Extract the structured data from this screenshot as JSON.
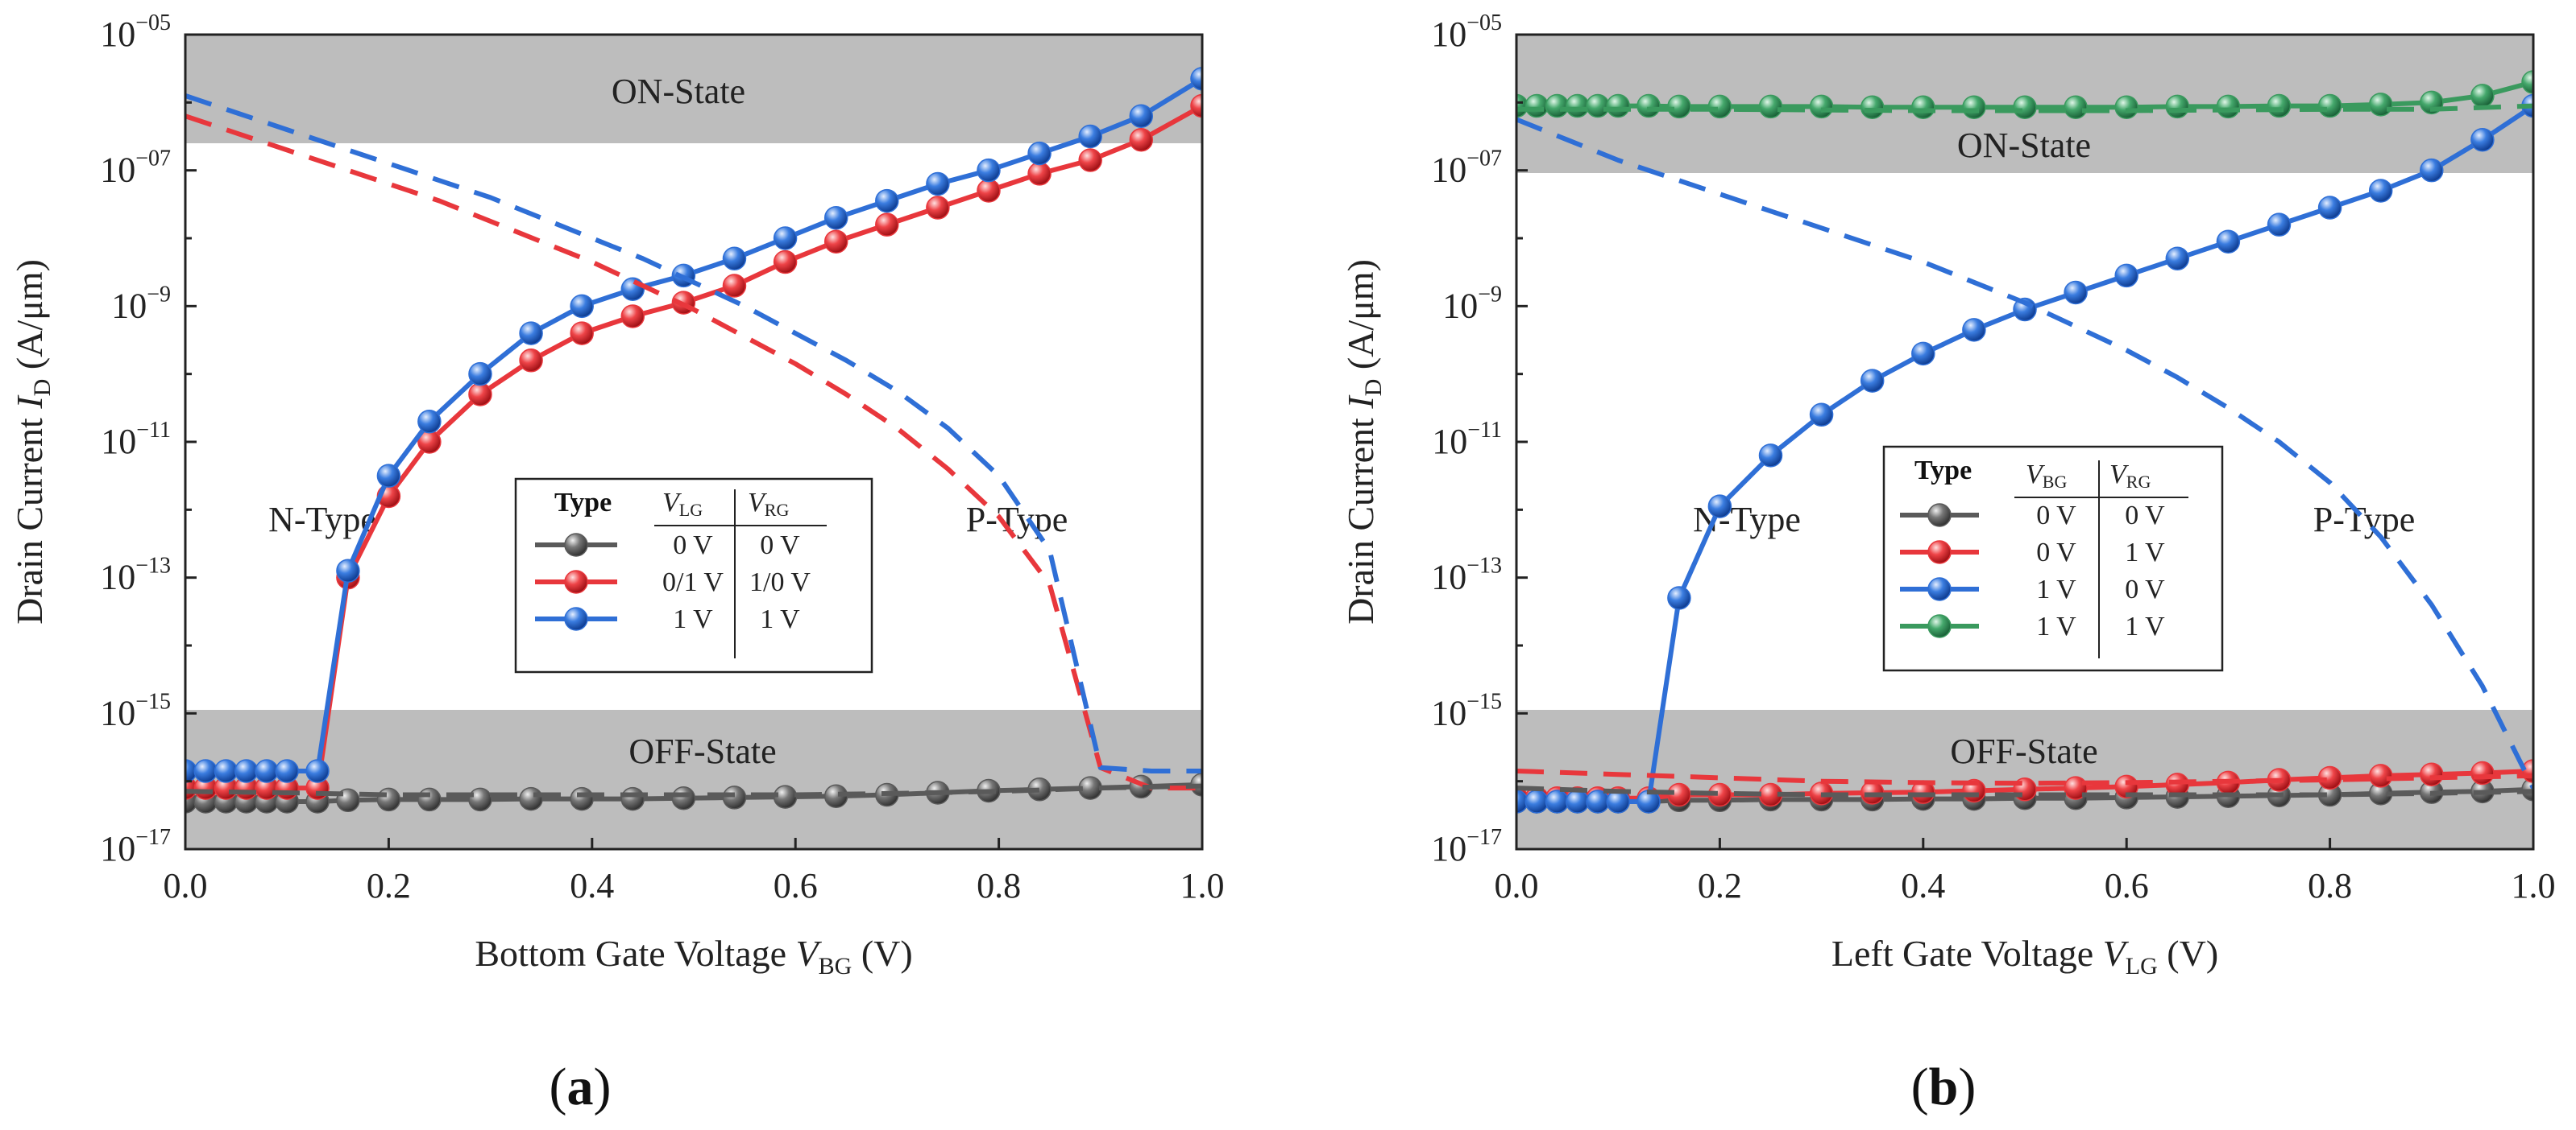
{
  "colors": {
    "gray": "#5a5a5a",
    "red": "#e8373c",
    "blue": "#2f6fd6",
    "green": "#3a9a5e",
    "band": "#bdbdbd"
  },
  "panels": [
    {
      "label_open": "(",
      "label_letter": "a",
      "label_close": ")",
      "on_label": "ON-State",
      "off_label": "OFF-State",
      "n_label": "N-Type",
      "p_label": "P-Type",
      "legend": {
        "type_header": "Type",
        "col1_header_main": "V",
        "col1_header_sub": "LG",
        "col2_header_main": "V",
        "col2_header_sub": "RG",
        "rows": [
          {
            "c1": "0 V",
            "c2": "0 V",
            "color_key": "gray"
          },
          {
            "c1": "0/1 V",
            "c2": "1/0 V",
            "color_key": "red"
          },
          {
            "c1": "1 V",
            "c2": "1 V",
            "color_key": "blue"
          }
        ]
      }
    },
    {
      "label_open": "(",
      "label_letter": "b",
      "label_close": ")",
      "on_label": "ON-State",
      "off_label": "OFF-State",
      "n_label": "N-Type",
      "p_label": "P-Type",
      "legend": {
        "type_header": "Type",
        "col1_header_main": "V",
        "col1_header_sub": "BG",
        "col2_header_main": "V",
        "col2_header_sub": "RG",
        "rows": [
          {
            "c1": "0 V",
            "c2": "0 V",
            "color_key": "gray"
          },
          {
            "c1": "0 V",
            "c2": "1 V",
            "color_key": "red"
          },
          {
            "c1": "1 V",
            "c2": "0 V",
            "color_key": "blue"
          },
          {
            "c1": "1 V",
            "c2": "1 V",
            "color_key": "green"
          }
        ]
      }
    }
  ],
  "chart_data": [
    {
      "type": "line",
      "title": "",
      "xlabel_main": "Bottom Gate Voltage ",
      "xlabel_var": "V",
      "xlabel_sub": "BG",
      "xlabel_unit": " (V)",
      "ylabel_main": "Drain Current ",
      "ylabel_var": "I",
      "ylabel_sub": "D",
      "ylabel_unit": " (A/μm)",
      "xlim": [
        0.0,
        1.0
      ],
      "ylim_log10": [
        -17,
        -5
      ],
      "yscale": "log",
      "xtick_values": [
        0.0,
        0.2,
        0.4,
        0.6,
        0.8,
        1.0
      ],
      "xtick_labels": [
        "0.0",
        "0.2",
        "0.4",
        "0.6",
        "0.8",
        "1.0"
      ],
      "ytick_exponents": [
        -17,
        -15,
        -13,
        -11,
        -9,
        -7,
        -5
      ],
      "ytick_base": "10",
      "ytick_sups": [
        "−17",
        "−15",
        "−13",
        "−11",
        "−9",
        "−07",
        "−05"
      ],
      "on_band_log10": [
        -6.6,
        -5
      ],
      "off_band_log10": [
        -17,
        -14.95
      ],
      "series": [
        {
          "name": "0 V / 0 V",
          "color_key": "gray",
          "style": "solid-markers",
          "x": [
            0.0,
            0.02,
            0.04,
            0.06,
            0.08,
            0.1,
            0.13,
            0.16,
            0.2,
            0.24,
            0.29,
            0.34,
            0.39,
            0.44,
            0.49,
            0.54,
            0.59,
            0.64,
            0.69,
            0.74,
            0.79,
            0.84,
            0.89,
            0.94,
            1.0
          ],
          "y_log10": [
            -16.3,
            -16.3,
            -16.3,
            -16.3,
            -16.3,
            -16.3,
            -16.3,
            -16.28,
            -16.27,
            -16.27,
            -16.27,
            -16.26,
            -16.26,
            -16.26,
            -16.25,
            -16.24,
            -16.23,
            -16.22,
            -16.2,
            -16.17,
            -16.14,
            -16.12,
            -16.1,
            -16.08,
            -16.05
          ]
        },
        {
          "name": "0/1 V / 1/0 V",
          "color_key": "red",
          "style": "solid-markers",
          "x": [
            0.0,
            0.02,
            0.04,
            0.06,
            0.08,
            0.1,
            0.13,
            0.16,
            0.2,
            0.24,
            0.29,
            0.34,
            0.39,
            0.44,
            0.49,
            0.54,
            0.59,
            0.64,
            0.69,
            0.74,
            0.79,
            0.84,
            0.89,
            0.94,
            1.0
          ],
          "y_log10": [
            -16.1,
            -16.1,
            -16.1,
            -16.1,
            -16.1,
            -16.1,
            -16.1,
            -13.0,
            -11.8,
            -11.0,
            -10.3,
            -9.8,
            -9.4,
            -9.15,
            -8.95,
            -8.7,
            -8.35,
            -8.05,
            -7.8,
            -7.55,
            -7.3,
            -7.05,
            -6.85,
            -6.55,
            -6.05
          ]
        },
        {
          "name": "1 V / 1 V",
          "color_key": "blue",
          "style": "solid-markers",
          "x": [
            0.0,
            0.02,
            0.04,
            0.06,
            0.08,
            0.1,
            0.13,
            0.16,
            0.2,
            0.24,
            0.29,
            0.34,
            0.39,
            0.44,
            0.49,
            0.54,
            0.59,
            0.64,
            0.69,
            0.74,
            0.79,
            0.84,
            0.89,
            0.94,
            1.0
          ],
          "y_log10": [
            -15.85,
            -15.85,
            -15.85,
            -15.85,
            -15.85,
            -15.85,
            -15.85,
            -12.9,
            -11.5,
            -10.7,
            -10.0,
            -9.4,
            -9.0,
            -8.75,
            -8.55,
            -8.3,
            -8.0,
            -7.7,
            -7.45,
            -7.2,
            -7.0,
            -6.75,
            -6.5,
            -6.2,
            -5.65
          ]
        },
        {
          "name": "red P-branch (dashed)",
          "color_key": "red",
          "style": "dashed",
          "x": [
            0.0,
            0.05,
            0.1,
            0.15,
            0.2,
            0.25,
            0.3,
            0.35,
            0.4,
            0.45,
            0.5,
            0.55,
            0.6,
            0.65,
            0.7,
            0.75,
            0.8,
            0.85,
            0.9,
            0.95,
            1.0
          ],
          "y_log10": [
            -6.2,
            -6.45,
            -6.7,
            -6.95,
            -7.2,
            -7.45,
            -7.75,
            -8.05,
            -8.35,
            -8.7,
            -9.05,
            -9.45,
            -9.85,
            -10.3,
            -10.8,
            -11.4,
            -12.1,
            -13.1,
            -15.8,
            -16.1,
            -16.1
          ]
        },
        {
          "name": "blue P-branch (dashed)",
          "color_key": "blue",
          "style": "dashed",
          "x": [
            0.0,
            0.05,
            0.1,
            0.15,
            0.2,
            0.25,
            0.3,
            0.35,
            0.4,
            0.45,
            0.5,
            0.55,
            0.6,
            0.65,
            0.7,
            0.75,
            0.8,
            0.85,
            0.9,
            0.95,
            1.0
          ],
          "y_log10": [
            -5.9,
            -6.15,
            -6.4,
            -6.65,
            -6.9,
            -7.15,
            -7.4,
            -7.7,
            -8.0,
            -8.3,
            -8.65,
            -9.0,
            -9.4,
            -9.8,
            -10.25,
            -10.8,
            -11.5,
            -12.6,
            -15.8,
            -15.85,
            -15.85
          ]
        },
        {
          "name": "gray P-branch (dashed)",
          "color_key": "gray",
          "style": "dashed",
          "x": [
            0.0,
            0.1,
            0.2,
            0.3,
            0.4,
            0.5,
            0.6,
            0.7,
            0.8,
            0.9,
            1.0
          ],
          "y_log10": [
            -16.15,
            -16.17,
            -16.2,
            -16.2,
            -16.2,
            -16.2,
            -16.2,
            -16.18,
            -16.15,
            -16.1,
            -16.07
          ]
        }
      ]
    },
    {
      "type": "line",
      "title": "",
      "xlabel_main": "Left Gate Voltage ",
      "xlabel_var": "V",
      "xlabel_sub": "LG",
      "xlabel_unit": " (V)",
      "ylabel_main": "Drain Current ",
      "ylabel_var": "I",
      "ylabel_sub": "D",
      "ylabel_unit": " (A/μm)",
      "xlim": [
        0.0,
        1.0
      ],
      "ylim_log10": [
        -17,
        -5
      ],
      "yscale": "log",
      "xtick_values": [
        0.0,
        0.2,
        0.4,
        0.6,
        0.8,
        1.0
      ],
      "xtick_labels": [
        "0.0",
        "0.2",
        "0.4",
        "0.6",
        "0.8",
        "1.0"
      ],
      "ytick_exponents": [
        -17,
        -15,
        -13,
        -11,
        -9,
        -7,
        -5
      ],
      "ytick_base": "10",
      "ytick_sups": [
        "−17",
        "−15",
        "−13",
        "−11",
        "−9",
        "−07",
        "−05"
      ],
      "on_band_log10": [
        -7.05,
        -5
      ],
      "off_band_log10": [
        -17,
        -14.95
      ],
      "series": [
        {
          "name": "0 V / 0 V",
          "color_key": "gray",
          "style": "solid-markers",
          "x": [
            0.0,
            0.02,
            0.04,
            0.06,
            0.08,
            0.1,
            0.13,
            0.16,
            0.2,
            0.25,
            0.3,
            0.35,
            0.4,
            0.45,
            0.5,
            0.55,
            0.6,
            0.65,
            0.7,
            0.75,
            0.8,
            0.85,
            0.9,
            0.95,
            1.0
          ],
          "y_log10": [
            -16.3,
            -16.3,
            -16.3,
            -16.3,
            -16.3,
            -16.3,
            -16.3,
            -16.28,
            -16.28,
            -16.27,
            -16.27,
            -16.27,
            -16.26,
            -16.26,
            -16.25,
            -16.25,
            -16.24,
            -16.23,
            -16.22,
            -16.21,
            -16.2,
            -16.18,
            -16.16,
            -16.15,
            -16.12
          ]
        },
        {
          "name": "0 V / 1 V",
          "color_key": "red",
          "style": "solid-markers",
          "x": [
            0.0,
            0.02,
            0.04,
            0.06,
            0.08,
            0.1,
            0.13,
            0.16,
            0.2,
            0.25,
            0.3,
            0.35,
            0.4,
            0.45,
            0.5,
            0.55,
            0.6,
            0.65,
            0.7,
            0.75,
            0.8,
            0.85,
            0.9,
            0.95,
            1.0
          ],
          "y_log10": [
            -16.25,
            -16.25,
            -16.25,
            -16.25,
            -16.25,
            -16.25,
            -16.25,
            -16.2,
            -16.2,
            -16.2,
            -16.18,
            -16.17,
            -16.16,
            -16.14,
            -16.12,
            -16.1,
            -16.08,
            -16.05,
            -16.02,
            -15.98,
            -15.95,
            -15.92,
            -15.9,
            -15.88,
            -15.85
          ]
        },
        {
          "name": "1 V / 0 V",
          "color_key": "blue",
          "style": "solid-markers",
          "x": [
            0.0,
            0.02,
            0.04,
            0.06,
            0.08,
            0.1,
            0.13,
            0.16,
            0.2,
            0.25,
            0.3,
            0.35,
            0.4,
            0.45,
            0.5,
            0.55,
            0.6,
            0.65,
            0.7,
            0.75,
            0.8,
            0.85,
            0.9,
            0.95,
            1.0
          ],
          "y_log10": [
            -16.3,
            -16.3,
            -16.3,
            -16.3,
            -16.3,
            -16.3,
            -16.3,
            -13.3,
            -11.95,
            -11.2,
            -10.6,
            -10.1,
            -9.7,
            -9.35,
            -9.05,
            -8.8,
            -8.55,
            -8.3,
            -8.05,
            -7.8,
            -7.55,
            -7.3,
            -7.0,
            -6.55,
            -6.05
          ]
        },
        {
          "name": "1 V / 1 V",
          "color_key": "green",
          "style": "solid-markers",
          "x": [
            0.0,
            0.02,
            0.04,
            0.06,
            0.08,
            0.1,
            0.13,
            0.16,
            0.2,
            0.25,
            0.3,
            0.35,
            0.4,
            0.45,
            0.5,
            0.55,
            0.6,
            0.65,
            0.7,
            0.75,
            0.8,
            0.85,
            0.9,
            0.95,
            1.0
          ],
          "y_log10": [
            -6.05,
            -6.05,
            -6.05,
            -6.05,
            -6.05,
            -6.05,
            -6.05,
            -6.06,
            -6.06,
            -6.06,
            -6.06,
            -6.07,
            -6.07,
            -6.07,
            -6.07,
            -6.07,
            -6.07,
            -6.06,
            -6.06,
            -6.05,
            -6.05,
            -6.03,
            -6.0,
            -5.9,
            -5.7
          ]
        },
        {
          "name": "blue P-branch (dashed)",
          "color_key": "blue",
          "style": "dashed",
          "x": [
            0.0,
            0.05,
            0.1,
            0.15,
            0.2,
            0.25,
            0.3,
            0.35,
            0.4,
            0.45,
            0.5,
            0.55,
            0.6,
            0.65,
            0.7,
            0.75,
            0.8,
            0.85,
            0.9,
            0.95,
            1.0
          ],
          "y_log10": [
            -6.25,
            -6.55,
            -6.85,
            -7.1,
            -7.35,
            -7.6,
            -7.85,
            -8.1,
            -8.35,
            -8.65,
            -8.95,
            -9.3,
            -9.65,
            -10.05,
            -10.5,
            -11.0,
            -11.6,
            -12.4,
            -13.4,
            -14.6,
            -16.1
          ]
        },
        {
          "name": "gray P-branch (dashed)",
          "color_key": "gray",
          "style": "dashed",
          "x": [
            0.0,
            0.1,
            0.2,
            0.3,
            0.4,
            0.5,
            0.6,
            0.7,
            0.8,
            0.9,
            1.0
          ],
          "y_log10": [
            -16.1,
            -16.15,
            -16.18,
            -16.2,
            -16.2,
            -16.2,
            -16.2,
            -16.2,
            -16.2,
            -16.18,
            -16.15
          ]
        },
        {
          "name": "red/green P-branch (dashed)",
          "color_key": "red",
          "style": "dashed",
          "x": [
            0.0,
            0.1,
            0.2,
            0.3,
            0.4,
            0.5,
            0.6,
            0.7,
            0.8,
            0.9,
            1.0
          ],
          "y_log10": [
            -15.85,
            -15.9,
            -15.95,
            -16.0,
            -16.02,
            -16.03,
            -16.02,
            -16.0,
            -15.98,
            -15.95,
            -15.92
          ]
        },
        {
          "name": "green dashed top",
          "color_key": "green",
          "style": "dashed",
          "x": [
            0.0,
            0.2,
            0.4,
            0.6,
            0.8,
            0.9,
            1.0
          ],
          "y_log10": [
            -6.1,
            -6.1,
            -6.12,
            -6.12,
            -6.1,
            -6.1,
            -6.05
          ]
        }
      ]
    }
  ]
}
